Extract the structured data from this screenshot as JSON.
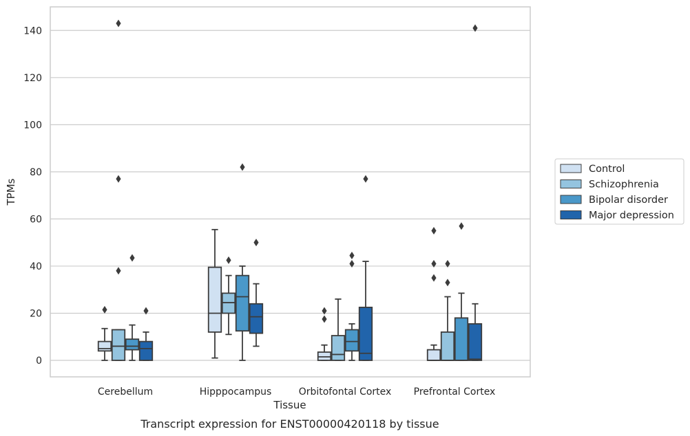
{
  "caption": "Transcript expression for ENST00000420118 by tissue",
  "chart_data": {
    "type": "boxplot",
    "xlabel": "Tissue",
    "ylabel": "TPMs",
    "ylim": [
      -7,
      150
    ],
    "yticks": [
      0,
      20,
      40,
      60,
      80,
      100,
      120,
      140
    ],
    "grid": "horizontal",
    "legend_position": "right",
    "categories": [
      "Cerebellum",
      "Hipppocampus",
      "Orbitofontal Cortex",
      "Prefrontal Cortex"
    ],
    "series": [
      {
        "name": "Control",
        "color": "#d0e1f2",
        "boxes": [
          {
            "whislo": 0,
            "q1": 4,
            "med": 5,
            "q3": 8,
            "whishi": 13.5,
            "fliers": [
              21.5
            ]
          },
          {
            "whislo": 1,
            "q1": 12,
            "med": 20,
            "q3": 39.5,
            "whishi": 55.5,
            "fliers": []
          },
          {
            "whislo": 0,
            "q1": 0,
            "med": 1.5,
            "q3": 3.5,
            "whishi": 6.5,
            "fliers": [
              17.5,
              21
            ]
          },
          {
            "whislo": 0,
            "q1": 0,
            "med": 0,
            "q3": 4.5,
            "whishi": 6.5,
            "fliers": [
              35,
              41,
              55
            ]
          }
        ]
      },
      {
        "name": "Schizophrenia",
        "color": "#94c4df",
        "boxes": [
          {
            "whislo": 0,
            "q1": 0,
            "med": 6,
            "q3": 13,
            "whishi": 13,
            "fliers": [
              38,
              77,
              143
            ]
          },
          {
            "whislo": 11,
            "q1": 20,
            "med": 24.5,
            "q3": 28.5,
            "whishi": 36,
            "fliers": [
              42.5
            ]
          },
          {
            "whislo": 0,
            "q1": 0,
            "med": 2.5,
            "q3": 10.5,
            "whishi": 26,
            "fliers": []
          },
          {
            "whislo": 0,
            "q1": 0,
            "med": 0,
            "q3": 12,
            "whishi": 27,
            "fliers": [
              33,
              41
            ]
          }
        ]
      },
      {
        "name": "Bipolar disorder",
        "color": "#4a98c9",
        "boxes": [
          {
            "whislo": 0,
            "q1": 4.5,
            "med": 6,
            "q3": 9,
            "whishi": 15,
            "fliers": [
              43.5
            ]
          },
          {
            "whislo": 0,
            "q1": 12.5,
            "med": 27,
            "q3": 36,
            "whishi": 40,
            "fliers": [
              82
            ]
          },
          {
            "whislo": 0,
            "q1": 4,
            "med": 8,
            "q3": 13,
            "whishi": 15.5,
            "fliers": [
              41,
              44.5
            ]
          },
          {
            "whislo": 0,
            "q1": 0,
            "med": 0,
            "q3": 18,
            "whishi": 28.5,
            "fliers": [
              57
            ]
          }
        ]
      },
      {
        "name": "Major depression",
        "color": "#2164ab",
        "boxes": [
          {
            "whislo": 0,
            "q1": 0,
            "med": 5,
            "q3": 8,
            "whishi": 12,
            "fliers": [
              21
            ]
          },
          {
            "whislo": 6,
            "q1": 11.5,
            "med": 18.5,
            "q3": 24,
            "whishi": 32.5,
            "fliers": [
              50
            ]
          },
          {
            "whislo": 0,
            "q1": 0,
            "med": 3,
            "q3": 22.5,
            "whishi": 42,
            "fliers": [
              77
            ]
          },
          {
            "whislo": 0,
            "q1": 0,
            "med": 0.5,
            "q3": 15.5,
            "whishi": 24,
            "fliers": [
              141
            ]
          }
        ]
      }
    ]
  }
}
